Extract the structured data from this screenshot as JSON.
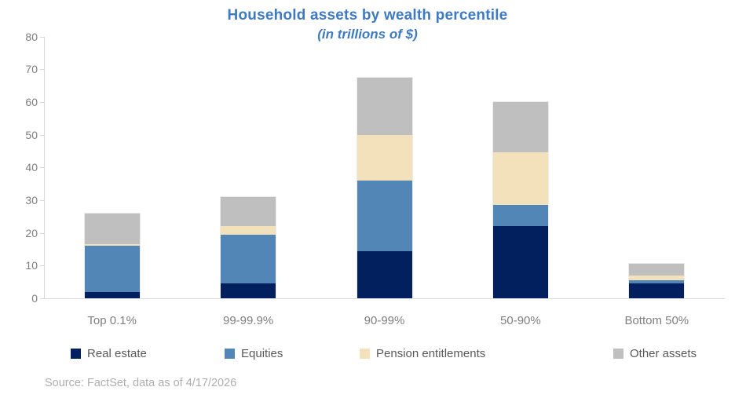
{
  "source": "Source: FactSet, data as of 4/17/2026",
  "colors": {
    "title": "#3E7AC1",
    "axis_line": "#D9D9D9",
    "tick_label": "#7F7F7F",
    "category_label": "#7F7F7F",
    "legend_label": "#595959",
    "source_text": "#ADADAD"
  },
  "chart_data": {
    "type": "bar",
    "stacked": true,
    "title": "Household assets by wealth percentile",
    "subtitle": "(in trillions of $)",
    "xlabel": "",
    "ylabel": "",
    "ylim": [
      0,
      80
    ],
    "ytick_step": 10,
    "grid": false,
    "legend_position": "bottom",
    "categories": [
      "Top 0.1%",
      "99-99.9%",
      "90-99%",
      "50-90%",
      "Bottom 50%"
    ],
    "series": [
      {
        "name": "Real estate",
        "color": "#02205E",
        "values": [
          2,
          4.5,
          14.5,
          22,
          4.5
        ]
      },
      {
        "name": "Equities",
        "color": "#5286B6",
        "values": [
          14,
          15,
          21.5,
          6.5,
          1
        ]
      },
      {
        "name": "Pension entitlements",
        "color": "#F2E1BA",
        "values": [
          0.5,
          2.5,
          14,
          16,
          1.5
        ]
      },
      {
        "name": "Other assets",
        "color": "#BFBFBF",
        "values": [
          9.5,
          9,
          17.5,
          15.5,
          3.5
        ]
      }
    ],
    "totals": [
      26,
      31,
      67.5,
      60,
      10.5
    ]
  }
}
